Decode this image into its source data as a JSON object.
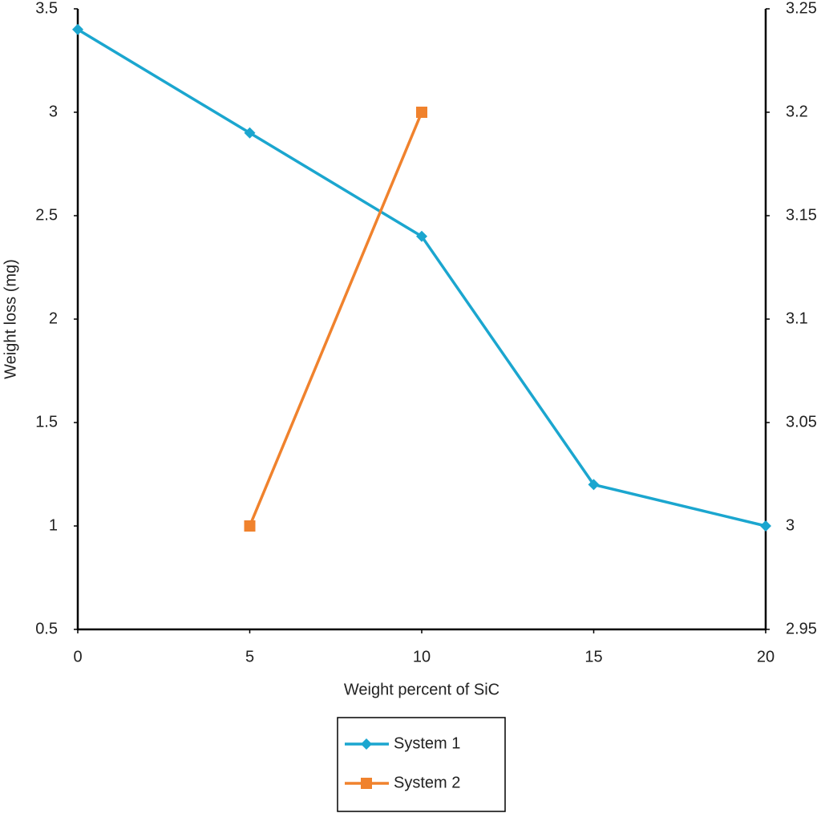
{
  "chart_data": {
    "type": "line",
    "x_label": "Weight percent of SiC",
    "y_label": "Weight loss (mg)",
    "x": [
      0,
      5,
      10,
      15,
      20
    ],
    "xlim": [
      0,
      20
    ],
    "xticks": [
      0,
      5,
      10,
      15,
      20
    ],
    "ylim": [
      0.5,
      3.5
    ],
    "yticks": [
      0.5,
      1,
      1.5,
      2,
      2.5,
      3,
      3.5
    ],
    "y2lim": [
      2.95,
      3.25
    ],
    "y2ticks": [
      2.95,
      3,
      3.05,
      3.1,
      3.15,
      3.2,
      3.25
    ],
    "series": [
      {
        "name": "System 1",
        "color": "#1ba6cf",
        "marker": "diamond",
        "values": [
          3.4,
          2.9,
          2.4,
          1.2,
          1.0
        ]
      },
      {
        "name": "System 2",
        "color": "#f0822d",
        "marker": "square",
        "axis": "y2",
        "values": [
          null,
          3.0,
          3.2,
          null,
          null
        ]
      }
    ]
  }
}
